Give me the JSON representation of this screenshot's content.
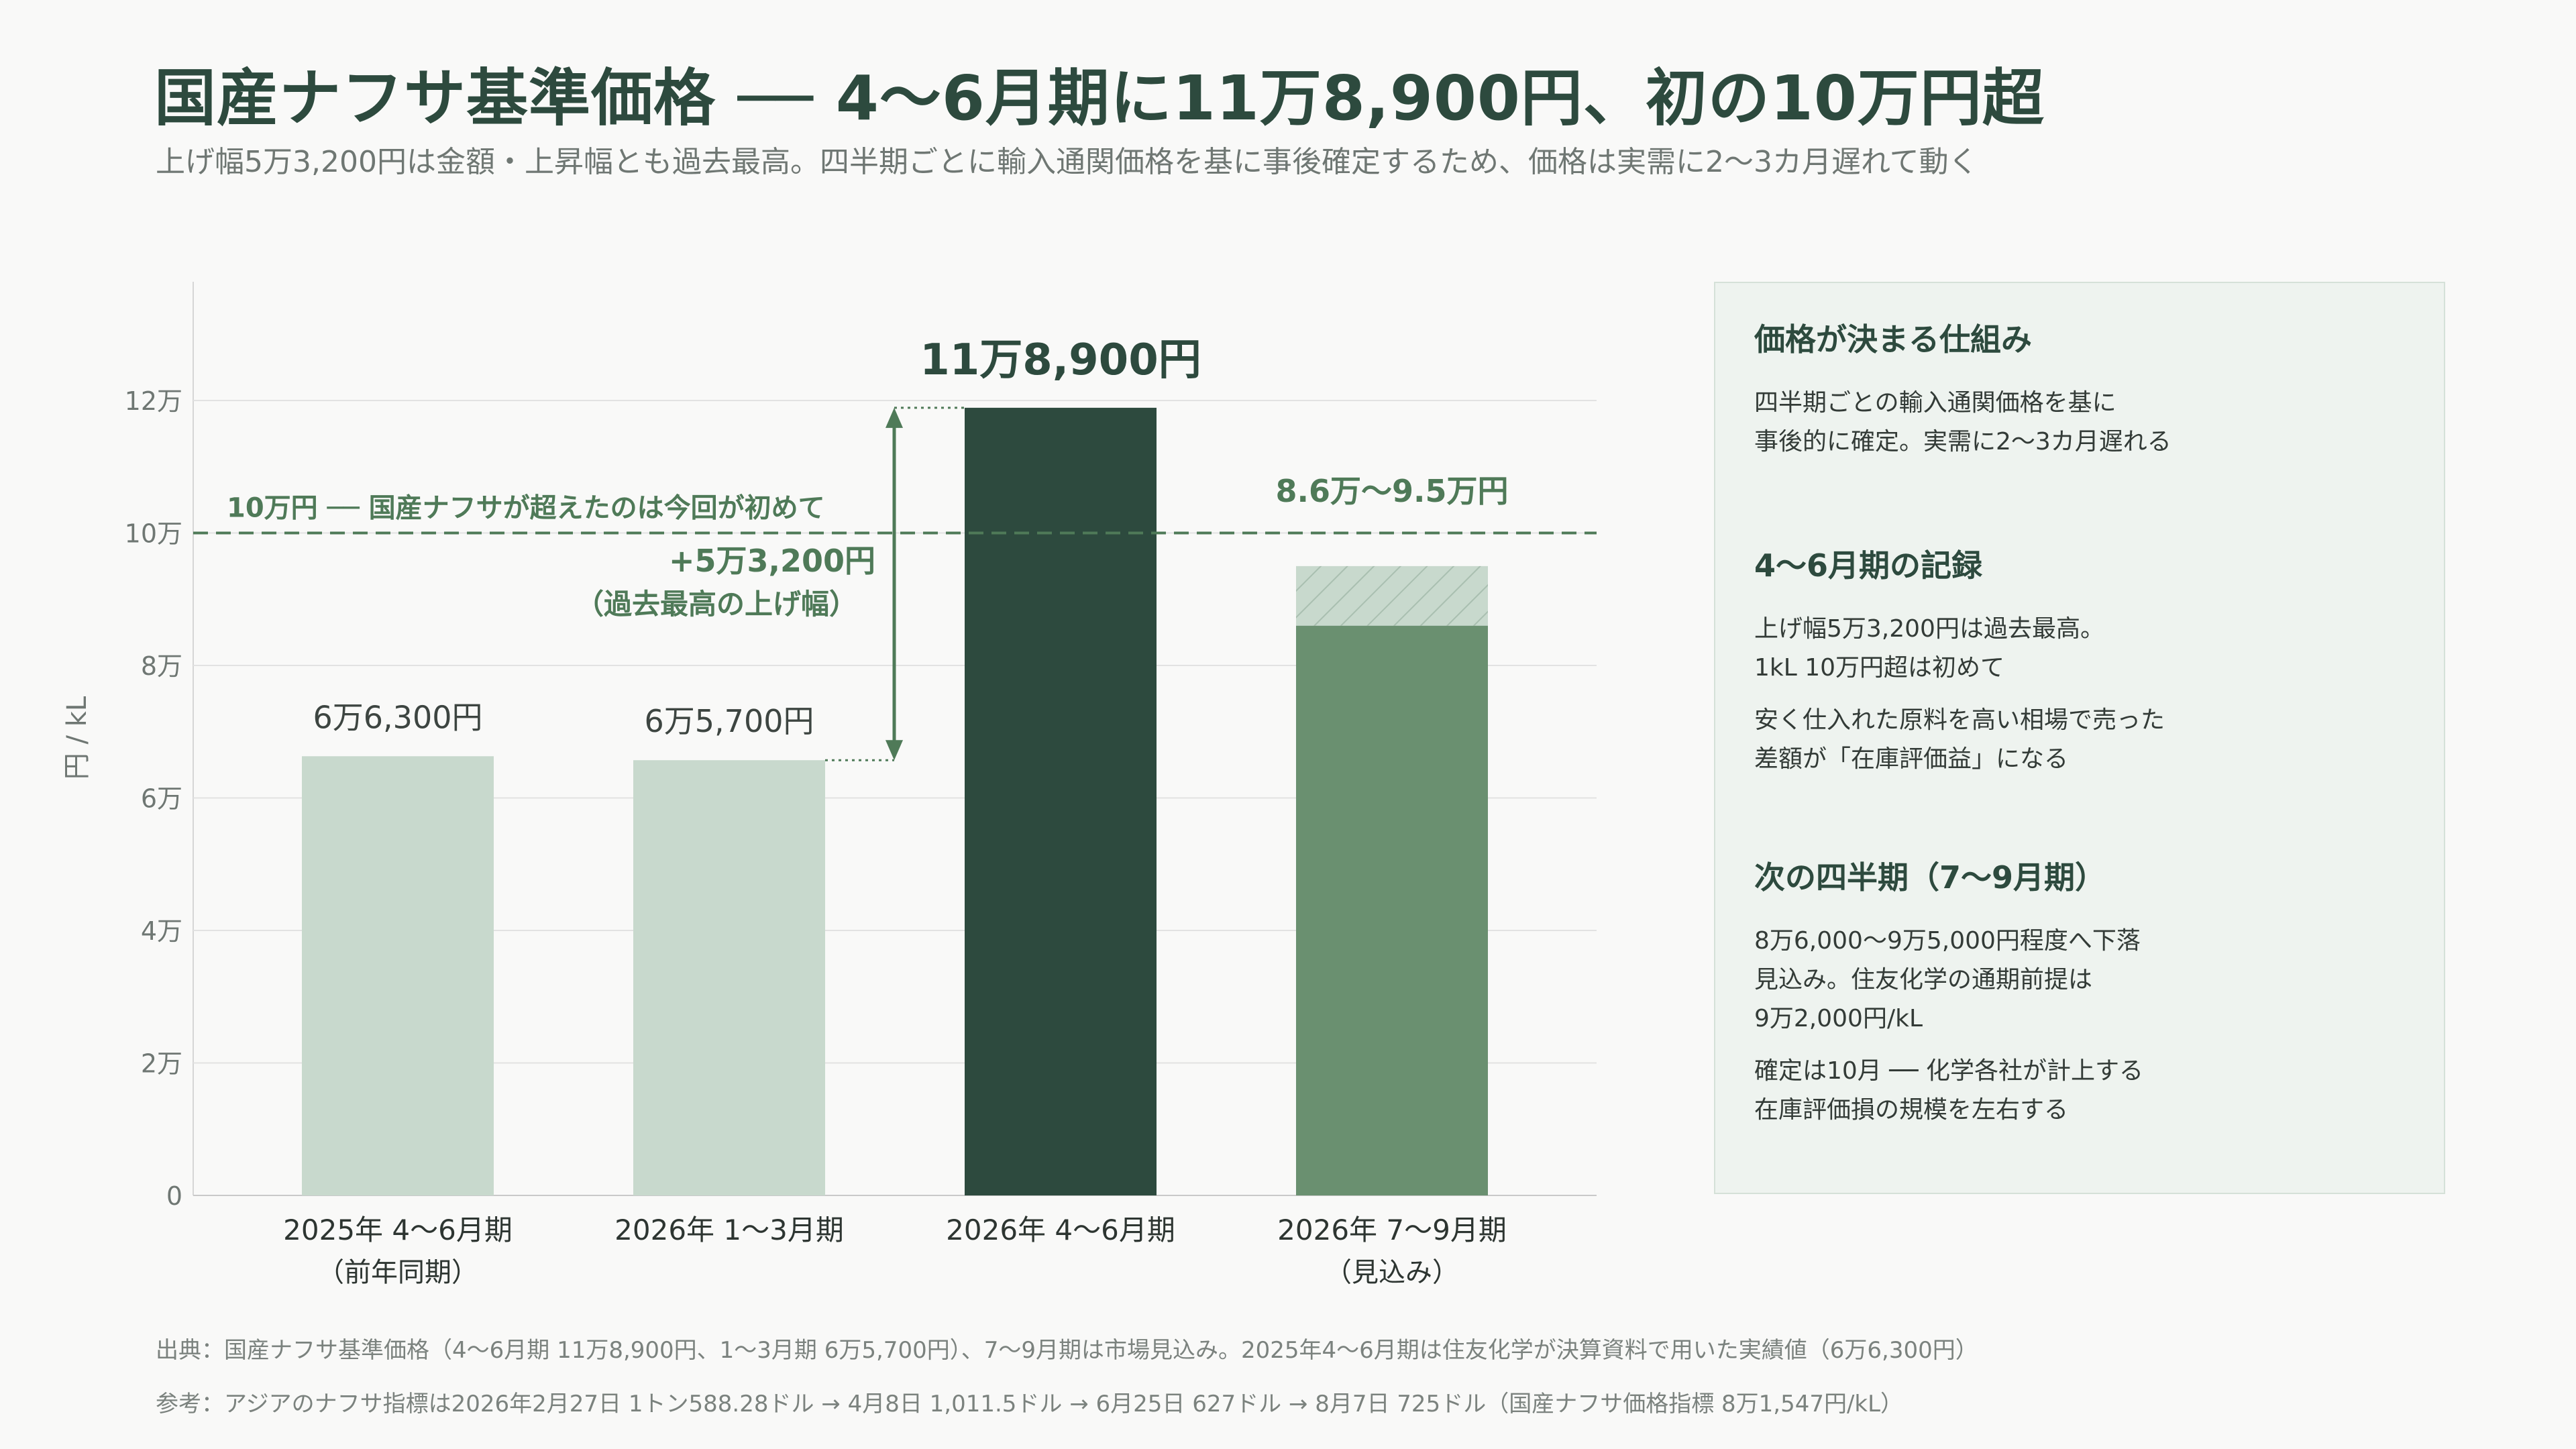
{
  "header": {
    "title": "国産ナフサ基準価格 ── 4〜6月期に11万8,900円、初の10万円超",
    "subtitle": "上げ幅5万3,200円は金額・上昇幅とも過去最高。四半期ごとに輸入通関価格を基に事後確定するため、価格は実需に2〜3カ月遅れて動く"
  },
  "chart_data": {
    "type": "bar",
    "ylabel": "円 / kL",
    "ylim": [
      0,
      130000
    ],
    "yticks": [
      0,
      20000,
      40000,
      60000,
      80000,
      100000,
      120000
    ],
    "ytick_labels": [
      "0",
      "2万",
      "4万",
      "6万",
      "8万",
      "10万",
      "12万"
    ],
    "categories": [
      {
        "label": "2025年 4〜6月期",
        "sublabel": "（前年同期）"
      },
      {
        "label": "2026年 1〜3月期",
        "sublabel": ""
      },
      {
        "label": "2026年 4〜6月期",
        "sublabel": ""
      },
      {
        "label": "2026年 7〜9月期",
        "sublabel": "（見込み）"
      }
    ],
    "values": [
      66300,
      65700,
      118900,
      86000
    ],
    "range_high": [
      null,
      null,
      null,
      95000
    ],
    "data_labels": [
      "6万6,300円",
      "6万5,700円",
      "11万8,900円",
      "8.6万〜9.5万円"
    ],
    "colors": [
      "#c8d9cd",
      "#c8d9cd",
      "#2d4a3e",
      "#6a9070"
    ],
    "reference_line": {
      "value": 100000,
      "label": "10万円 ── 国産ナフサが超えたのは今回が初めて"
    },
    "increase_annotation": {
      "from": 65700,
      "to": 118900,
      "label": "+5万3,200円",
      "sublabel": "（過去最高の上げ幅）"
    }
  },
  "side_panel": {
    "sections": [
      {
        "heading": "価格が決まる仕組み",
        "paragraphs": [
          "四半期ごとの輸入通関価格を基に\n事後的に確定。実需に2〜3カ月遅れる"
        ]
      },
      {
        "heading": "4〜6月期の記録",
        "paragraphs": [
          "上げ幅5万3,200円は過去最高。\n1kL 10万円超は初めて",
          "安く仕入れた原料を高い相場で売った\n差額が「在庫評価益」になる"
        ]
      },
      {
        "heading": "次の四半期（7〜9月期）",
        "paragraphs": [
          "8万6,000〜9万5,000円程度へ下落\n見込み。住友化学の通期前提は\n9万2,000円/kL",
          "確定は10月 ── 化学各社が計上する\n在庫評価損の規模を左右する"
        ]
      }
    ]
  },
  "footnotes": {
    "source": "出典：国産ナフサ基準価格（4〜6月期 11万8,900円、1〜3月期 6万5,700円）、7〜9月期は市場見込み。2025年4〜6月期は住友化学が決算資料で用いた実績値（6万6,300円）",
    "reference": "参考：アジアのナフサ指標は2026年2月27日 1トン588.28ドル → 4月8日 1,011.5ドル → 6月25日 627ドル → 8月7日 725ドル（国産ナフサ価格指標 8万1,547円/kL）"
  }
}
